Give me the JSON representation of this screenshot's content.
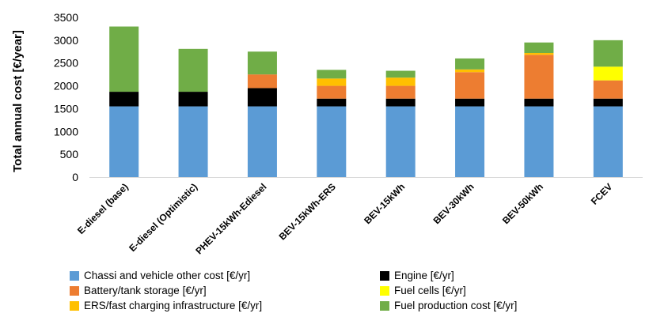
{
  "chart_data": {
    "type": "bar",
    "stacked": true,
    "ylabel": "Total annual cost [€/year]",
    "ylim": [
      0,
      3500
    ],
    "yticks": [
      0,
      500,
      1000,
      1500,
      2000,
      2500,
      3000,
      3500
    ],
    "grid": false,
    "legend_position": "bottom",
    "categories": [
      "E-diesel (base)",
      "E-diesel (Optimistic)",
      "PHEV-15kWh-Ediesel",
      "BEV-15kWh-ERS",
      "BEV-15kWh",
      "BEV-30kWh",
      "BEV-50kWh",
      "FCEV"
    ],
    "series": [
      {
        "name": "Chassi and vehicle other cost [€/yr]",
        "color": "#5b9bd5",
        "values": [
          1550,
          1550,
          1550,
          1550,
          1550,
          1550,
          1550,
          1550
        ]
      },
      {
        "name": "Engine [€/yr]",
        "color": "#000000",
        "values": [
          320,
          320,
          400,
          170,
          170,
          170,
          170,
          170
        ]
      },
      {
        "name": "Battery/tank storage [€/yr]",
        "color": "#ed7d31",
        "values": [
          0,
          0,
          300,
          280,
          280,
          580,
          960,
          400
        ]
      },
      {
        "name": "Fuel cells [€/yr]",
        "color": "#ffff00",
        "values": [
          0,
          0,
          0,
          0,
          0,
          0,
          0,
          300
        ]
      },
      {
        "name": "ERS/fast charging infrastructure [€/yr]",
        "color": "#ffc000",
        "values": [
          0,
          0,
          0,
          160,
          180,
          60,
          40,
          0
        ]
      },
      {
        "name": "Fuel production cost [€/yr]",
        "color": "#70ad47",
        "values": [
          1430,
          940,
          500,
          190,
          150,
          240,
          230,
          580
        ]
      }
    ]
  }
}
